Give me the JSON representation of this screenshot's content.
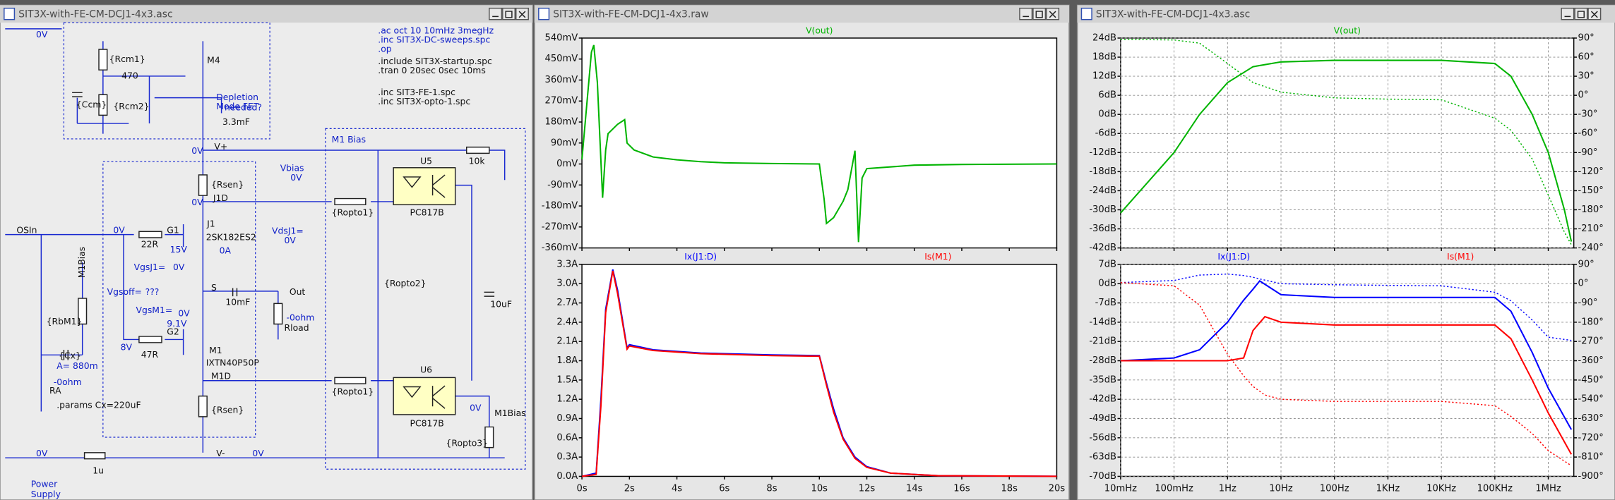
{
  "schematic": {
    "title": "SIT3X-with-FE-CM-DCJ1-4x3.asc",
    "directives": [
      ".ac oct 10 10mHz 3megHz",
      ".inc SIT3X-DC-sweeps.spc",
      ".op",
      ".include SIT3X-startup.spc",
      ".tran 0 20sec 0sec 10ms",
      ".inc SIT3-FE-1.spc",
      ".inc SIT3X-opto-1.spc"
    ],
    "labels": [
      "0V",
      "{Rcm1}",
      "M4",
      "470",
      "Depletion",
      "Mode FET",
      "{Ccm}",
      "{Rcm2}",
      "needed?",
      "3.3mF",
      "M1 Bias",
      "0V",
      "V+",
      "U5",
      "10k",
      "Vbias",
      "0V",
      "{Rsen}",
      "0V",
      "J1D",
      "{Ropto1}",
      "PC817B",
      "OSIn",
      "0V",
      "G1",
      "J1",
      "VdsJ1=",
      "0V",
      "2SK182ES2",
      "22R",
      "15V",
      "0A",
      "VgsJ1=",
      "0V",
      "S",
      "Out",
      "Vgsoff=",
      "???",
      "{Ropto2}",
      "VgsM1=",
      "0V",
      "10mF",
      "-0ohm",
      "{RbM1}",
      "9.1V",
      "Rload",
      "10uF",
      "G2",
      "8V",
      "47R",
      "{Cx}",
      "M1",
      "IXTN40P50P",
      "A= 880m",
      "U6",
      "M1D",
      "{Ropto1}",
      "-0ohm",
      "RA",
      ".params Cx=220uF",
      "PC817B",
      "0V",
      "M1Bias",
      "{Rsen}",
      "{Ropto3}",
      "0V",
      "V-",
      "0V",
      "1u",
      "Power",
      "Supply",
      "M1Bias"
    ]
  },
  "waveform": {
    "title": "SIT3X-with-FE-CM-DCJ1-4x3.raw",
    "xscale": "linear",
    "grid": false,
    "xlim": [
      0,
      20
    ],
    "xticks": [
      {
        "value": 0,
        "label": "0s"
      },
      {
        "value": 2,
        "label": "2s"
      },
      {
        "value": 4,
        "label": "4s"
      },
      {
        "value": 6,
        "label": "6s"
      },
      {
        "value": 8,
        "label": "8s"
      },
      {
        "value": 10,
        "label": "10s"
      },
      {
        "value": 12,
        "label": "12s"
      },
      {
        "value": 14,
        "label": "14s"
      },
      {
        "value": 16,
        "label": "16s"
      },
      {
        "value": 18,
        "label": "18s"
      },
      {
        "value": 20,
        "label": "20s"
      }
    ],
    "panes": [
      {
        "ylim": [
          -360,
          540
        ],
        "yticks": [
          {
            "value": 540,
            "label": "540mV"
          },
          {
            "value": 450,
            "label": "450mV"
          },
          {
            "value": 360,
            "label": "360mV"
          },
          {
            "value": 270,
            "label": "270mV"
          },
          {
            "value": 180,
            "label": "180mV"
          },
          {
            "value": 90,
            "label": "90mV"
          },
          {
            "value": 0,
            "label": "0mV"
          },
          {
            "value": -90,
            "label": "-90mV"
          },
          {
            "value": -180,
            "label": "-180mV"
          },
          {
            "value": -270,
            "label": "-270mV"
          },
          {
            "value": -360,
            "label": "-360mV"
          }
        ],
        "traces": [
          {
            "name": "V(out)",
            "color": "#00b400",
            "x": [
              0,
              0.2,
              0.4,
              0.5,
              0.65,
              0.87,
              1.0,
              1.1,
              1.5,
              1.8,
              1.9,
              2.2,
              3,
              4,
              5,
              6,
              8,
              10,
              10.2,
              10.3,
              10.6,
              11.0,
              11.2,
              11.5,
              11.65,
              11.8,
              12,
              14,
              16,
              20
            ],
            "values": [
              20,
              250,
              480,
              510,
              350,
              -145,
              60,
              130,
              170,
              190,
              90,
              60,
              30,
              18,
              10,
              5,
              2,
              0,
              -150,
              -255,
              -230,
              -160,
              -110,
              57,
              -335,
              -60,
              -20,
              -5,
              -2,
              0
            ]
          }
        ]
      },
      {
        "ylim": [
          0,
          3.3
        ],
        "yticks": [
          {
            "value": 3.3,
            "label": "3.3A"
          },
          {
            "value": 3.0,
            "label": "3.0A"
          },
          {
            "value": 2.7,
            "label": "2.7A"
          },
          {
            "value": 2.4,
            "label": "2.4A"
          },
          {
            "value": 2.1,
            "label": "2.1A"
          },
          {
            "value": 1.8,
            "label": "1.8A"
          },
          {
            "value": 1.5,
            "label": "1.5A"
          },
          {
            "value": 1.2,
            "label": "1.2A"
          },
          {
            "value": 0.9,
            "label": "0.9A"
          },
          {
            "value": 0.6,
            "label": "0.6A"
          },
          {
            "value": 0.3,
            "label": "0.3A"
          },
          {
            "value": 0,
            "label": "0.0A"
          }
        ],
        "traces": [
          {
            "name": "Ix(J1:D)",
            "color": "#0000ff",
            "x": [
              0,
              0.6,
              0.8,
              1.0,
              1.3,
              1.5,
              1.9,
              2,
              3,
              5,
              8,
              10,
              10.3,
              10.6,
              11,
              11.5,
              12,
              13,
              15,
              20
            ],
            "values": [
              0,
              0.05,
              1.2,
              2.6,
              3.22,
              2.9,
              2.0,
              2.05,
              1.97,
              1.92,
              1.89,
              1.88,
              1.45,
              1.05,
              0.6,
              0.3,
              0.15,
              0.05,
              0.01,
              0
            ]
          },
          {
            "name": "Is(M1)",
            "color": "#ff0000",
            "x": [
              0,
              0.6,
              0.8,
              1.0,
              1.3,
              1.5,
              1.9,
              2,
              3,
              5,
              8,
              10,
              10.3,
              10.6,
              11,
              11.5,
              12,
              13,
              15,
              20
            ],
            "values": [
              0,
              0.03,
              1.1,
              2.55,
              3.2,
              2.85,
              1.98,
              2.03,
              1.96,
              1.91,
              1.88,
              1.87,
              1.42,
              1.0,
              0.58,
              0.28,
              0.14,
              0.05,
              0.01,
              0
            ]
          }
        ]
      }
    ]
  },
  "bode": {
    "title": "SIT3X-with-FE-CM-DCJ1-4x3.asc",
    "xscale": "log",
    "grid": true,
    "xlim": [
      0.01,
      3000000
    ],
    "xticks": [
      {
        "value": 0.01,
        "label": "10mHz"
      },
      {
        "value": 0.1,
        "label": "100mHz"
      },
      {
        "value": 1,
        "label": "1Hz"
      },
      {
        "value": 10,
        "label": "10Hz"
      },
      {
        "value": 100,
        "label": "100Hz"
      },
      {
        "value": 1000,
        "label": "1KHz"
      },
      {
        "value": 10000,
        "label": "10KHz"
      },
      {
        "value": 100000,
        "label": "100KHz"
      },
      {
        "value": 1000000,
        "label": "1MHz"
      }
    ],
    "panes": [
      {
        "ylim": [
          -42,
          24
        ],
        "yticks": [
          {
            "value": 24,
            "label": "24dB"
          },
          {
            "value": 18,
            "label": "18dB"
          },
          {
            "value": 12,
            "label": "12dB"
          },
          {
            "value": 6,
            "label": "6dB"
          },
          {
            "value": 0,
            "label": "0dB"
          },
          {
            "value": -6,
            "label": "-6dB"
          },
          {
            "value": -12,
            "label": "-12dB"
          },
          {
            "value": -18,
            "label": "-18dB"
          },
          {
            "value": -24,
            "label": "-24dB"
          },
          {
            "value": -30,
            "label": "-30dB"
          },
          {
            "value": -36,
            "label": "-36dB"
          },
          {
            "value": -42,
            "label": "-42dB"
          }
        ],
        "y2lim": [
          -240,
          90
        ],
        "y2ticks": [
          {
            "value": 90,
            "label": "90°"
          },
          {
            "value": 60,
            "label": "60°"
          },
          {
            "value": 30,
            "label": "30°"
          },
          {
            "value": 0,
            "label": "0°"
          },
          {
            "value": -30,
            "label": "-30°"
          },
          {
            "value": -60,
            "label": "-60°"
          },
          {
            "value": -90,
            "label": "-90°"
          },
          {
            "value": -120,
            "label": "-120°"
          },
          {
            "value": -150,
            "label": "-150°"
          },
          {
            "value": -180,
            "label": "-180°"
          },
          {
            "value": -210,
            "label": "-210°"
          },
          {
            "value": -240,
            "label": "-240°"
          }
        ],
        "traces": [
          {
            "name": "V(out)",
            "color": "#00b400",
            "x": [
              0.01,
              0.1,
              0.3,
              1,
              3,
              10,
              100,
              1000,
              10000,
              100000,
              200000,
              500000,
              1000000,
              2000000,
              2700000
            ],
            "values": [
              -31,
              -12,
              0,
              10,
              15,
              16.5,
              17,
              17,
              17,
              16,
              12,
              0,
              -12,
              -30,
              -40
            ],
            "phase": [
              88,
              87,
              82,
              50,
              20,
              5,
              -4,
              -6,
              -7,
              -36,
              -55,
              -100,
              -157,
              -215,
              -235
            ]
          }
        ]
      },
      {
        "ylim": [
          -70,
          7
        ],
        "yticks": [
          {
            "value": 7,
            "label": "7dB"
          },
          {
            "value": 0,
            "label": "0dB"
          },
          {
            "value": -7,
            "label": "-7dB"
          },
          {
            "value": -14,
            "label": "-14dB"
          },
          {
            "value": -21,
            "label": "-21dB"
          },
          {
            "value": -28,
            "label": "-28dB"
          },
          {
            "value": -35,
            "label": "-35dB"
          },
          {
            "value": -42,
            "label": "-42dB"
          },
          {
            "value": -49,
            "label": "-49dB"
          },
          {
            "value": -56,
            "label": "-56dB"
          },
          {
            "value": -63,
            "label": "-63dB"
          },
          {
            "value": -70,
            "label": "-70dB"
          }
        ],
        "y2lim": [
          -900,
          90
        ],
        "y2ticks": [
          {
            "value": 90,
            "label": "90°"
          },
          {
            "value": 0,
            "label": "0°"
          },
          {
            "value": -90,
            "label": "-90°"
          },
          {
            "value": -180,
            "label": "-180°"
          },
          {
            "value": -270,
            "label": "-270°"
          },
          {
            "value": -360,
            "label": "-360°"
          },
          {
            "value": -450,
            "label": "-450°"
          },
          {
            "value": -540,
            "label": "-540°"
          },
          {
            "value": -630,
            "label": "-630°"
          },
          {
            "value": -720,
            "label": "-720°"
          },
          {
            "value": -810,
            "label": "-810°"
          },
          {
            "value": -900,
            "label": "-900°"
          }
        ],
        "traces": [
          {
            "name": "Ix(J1:D)",
            "color": "#0000ff",
            "x": [
              0.01,
              0.1,
              0.3,
              1,
              2,
              3,
              4,
              10,
              100,
              1000,
              10000,
              100000,
              200000,
              500000,
              1000000,
              2700000
            ],
            "values": [
              -28,
              -27,
              -24,
              -14,
              -6,
              -2,
              1,
              -4,
              -5,
              -5,
              -5,
              -5,
              -10,
              -25,
              -38,
              -53
            ],
            "phase": [
              5,
              15,
              40,
              45,
              38,
              30,
              22,
              0,
              -5,
              -8,
              -10,
              -40,
              -80,
              -170,
              -250,
              -265
            ]
          },
          {
            "name": "Is(M1)",
            "color": "#ff0000",
            "x": [
              0.01,
              0.1,
              0.3,
              1,
              2,
              3,
              5,
              10,
              100,
              1000,
              10000,
              100000,
              200000,
              500000,
              1000000,
              2700000
            ],
            "values": [
              -28,
              -28,
              -28,
              -28,
              -27,
              -17,
              -12,
              -14,
              -15,
              -15,
              -15,
              -15,
              -20,
              -35,
              -47,
              -62
            ],
            "phase": [
              5,
              -10,
              -100,
              -330,
              -430,
              -480,
              -520,
              -540,
              -550,
              -550,
              -550,
              -570,
              -620,
              -700,
              -780,
              -850
            ]
          }
        ]
      }
    ]
  }
}
